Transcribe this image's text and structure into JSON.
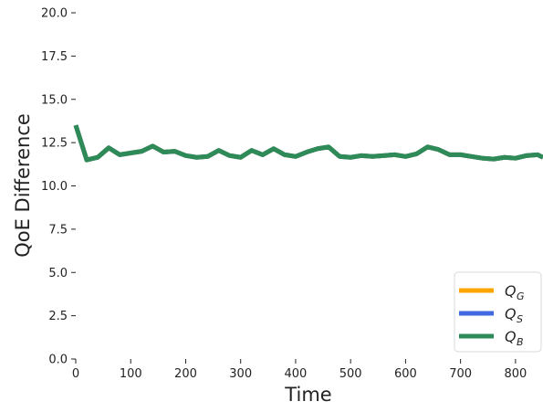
{
  "chart_data": {
    "type": "line",
    "title": "",
    "xlabel": "Time",
    "ylabel": "QoE Difference",
    "xlim": [
      0,
      850
    ],
    "ylim": [
      0,
      20
    ],
    "x_ticks": [
      0,
      100,
      200,
      300,
      400,
      500,
      600,
      700,
      800
    ],
    "x_tick_labels": [
      "0",
      "100",
      "200",
      "300",
      "400",
      "500",
      "600",
      "700",
      "800"
    ],
    "y_ticks": [
      0,
      2.5,
      5,
      7.5,
      10,
      12.5,
      15,
      17.5,
      20
    ],
    "y_tick_labels": [
      "0.0",
      "2.5",
      "5.0",
      "7.5",
      "10.0",
      "12.5",
      "15.0",
      "17.5",
      "20.0"
    ],
    "grid": false,
    "legend_position": "bottom-right",
    "x": [
      0,
      20,
      40,
      60,
      80,
      100,
      120,
      140,
      160,
      180,
      200,
      220,
      240,
      260,
      280,
      300,
      320,
      340,
      360,
      380,
      400,
      420,
      440,
      460,
      480,
      500,
      520,
      540,
      560,
      580,
      600,
      620,
      640,
      660,
      680,
      700,
      720,
      740,
      760,
      780,
      800,
      820,
      840,
      850
    ],
    "series": [
      {
        "name": "Q_G",
        "name_main": "Q",
        "name_sub": "G",
        "color": "#ffa500",
        "values": [
          13.5,
          11.5,
          11.65,
          12.2,
          11.8,
          11.9,
          12.0,
          12.3,
          11.95,
          12.0,
          11.75,
          11.65,
          11.7,
          12.05,
          11.75,
          11.65,
          12.05,
          11.8,
          12.15,
          11.8,
          11.7,
          11.95,
          12.15,
          12.25,
          11.7,
          11.65,
          11.75,
          11.7,
          11.75,
          11.8,
          11.7,
          11.85,
          12.25,
          12.1,
          11.8,
          11.8,
          11.7,
          11.6,
          11.55,
          11.65,
          11.6,
          11.75,
          11.8,
          11.65
        ]
      },
      {
        "name": "Q_S",
        "name_main": "Q",
        "name_sub": "S",
        "color": "#4169e1",
        "values": [
          13.5,
          11.5,
          11.65,
          12.2,
          11.8,
          11.9,
          12.0,
          12.3,
          11.95,
          12.0,
          11.75,
          11.65,
          11.7,
          12.05,
          11.75,
          11.65,
          12.05,
          11.8,
          12.15,
          11.8,
          11.7,
          11.95,
          12.15,
          12.25,
          11.7,
          11.65,
          11.75,
          11.7,
          11.75,
          11.8,
          11.7,
          11.85,
          12.25,
          12.1,
          11.8,
          11.8,
          11.7,
          11.6,
          11.55,
          11.65,
          11.6,
          11.75,
          11.8,
          11.65
        ]
      },
      {
        "name": "Q_B",
        "name_main": "Q",
        "name_sub": "B",
        "color": "#2e8b57",
        "values": [
          13.5,
          11.5,
          11.65,
          12.2,
          11.8,
          11.9,
          12.0,
          12.3,
          11.95,
          12.0,
          11.75,
          11.65,
          11.7,
          12.05,
          11.75,
          11.65,
          12.05,
          11.8,
          12.15,
          11.8,
          11.7,
          11.95,
          12.15,
          12.25,
          11.7,
          11.65,
          11.75,
          11.7,
          11.75,
          11.8,
          11.7,
          11.85,
          12.25,
          12.1,
          11.8,
          11.8,
          11.7,
          11.6,
          11.55,
          11.65,
          11.6,
          11.75,
          11.8,
          11.65
        ]
      }
    ]
  }
}
